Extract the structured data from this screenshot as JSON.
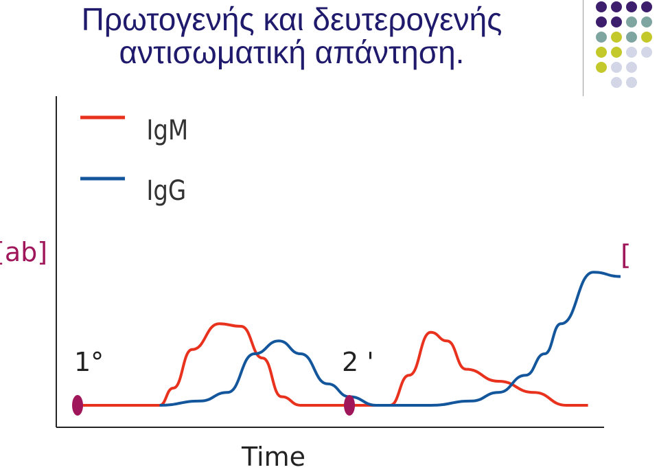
{
  "slide": {
    "title_line1": "Πρωτογενής και δευτερογενής",
    "title_line2": "αντισωματική απάντηση."
  },
  "decor": {
    "dot_colors": [
      "#3d1e6d",
      "#7fa5a1",
      "#c3c82b",
      "#d3d6e6"
    ]
  },
  "chart_data": {
    "type": "line",
    "xlabel": "Time",
    "ylabel": "[ab]",
    "right_label": "[",
    "legend": [
      {
        "name": "IgM",
        "color": "#e8321e"
      },
      {
        "name": "IgG",
        "color": "#13569c"
      }
    ],
    "markers": [
      {
        "label": "1°",
        "x": 0.0
      },
      {
        "label": "2 '",
        "x": 1.0
      }
    ],
    "marker_color": "#a0165a",
    "series": [
      {
        "name": "IgM",
        "color": "#e8321e",
        "points": [
          [
            0.0,
            0.0
          ],
          [
            0.3,
            0.0
          ],
          [
            0.35,
            0.2
          ],
          [
            0.42,
            0.65
          ],
          [
            0.52,
            0.95
          ],
          [
            0.6,
            0.92
          ],
          [
            0.68,
            0.55
          ],
          [
            0.75,
            0.1
          ],
          [
            0.82,
            0.0
          ],
          [
            1.0,
            0.0
          ],
          [
            1.15,
            0.0
          ],
          [
            1.22,
            0.35
          ],
          [
            1.3,
            0.85
          ],
          [
            1.36,
            0.75
          ],
          [
            1.43,
            0.42
          ],
          [
            1.55,
            0.28
          ],
          [
            1.68,
            0.15
          ],
          [
            1.8,
            0.0
          ],
          [
            1.88,
            0.0
          ]
        ]
      },
      {
        "name": "IgG",
        "color": "#13569c",
        "points": [
          [
            0.3,
            0.0
          ],
          [
            0.45,
            0.05
          ],
          [
            0.55,
            0.15
          ],
          [
            0.65,
            0.6
          ],
          [
            0.74,
            0.75
          ],
          [
            0.82,
            0.6
          ],
          [
            0.92,
            0.25
          ],
          [
            1.0,
            0.1
          ],
          [
            1.1,
            0.0
          ],
          [
            1.3,
            0.0
          ],
          [
            1.45,
            0.05
          ],
          [
            1.55,
            0.15
          ],
          [
            1.65,
            0.35
          ],
          [
            1.72,
            0.6
          ],
          [
            1.78,
            0.95
          ],
          [
            1.9,
            1.55
          ],
          [
            2.0,
            1.5
          ]
        ]
      }
    ]
  }
}
